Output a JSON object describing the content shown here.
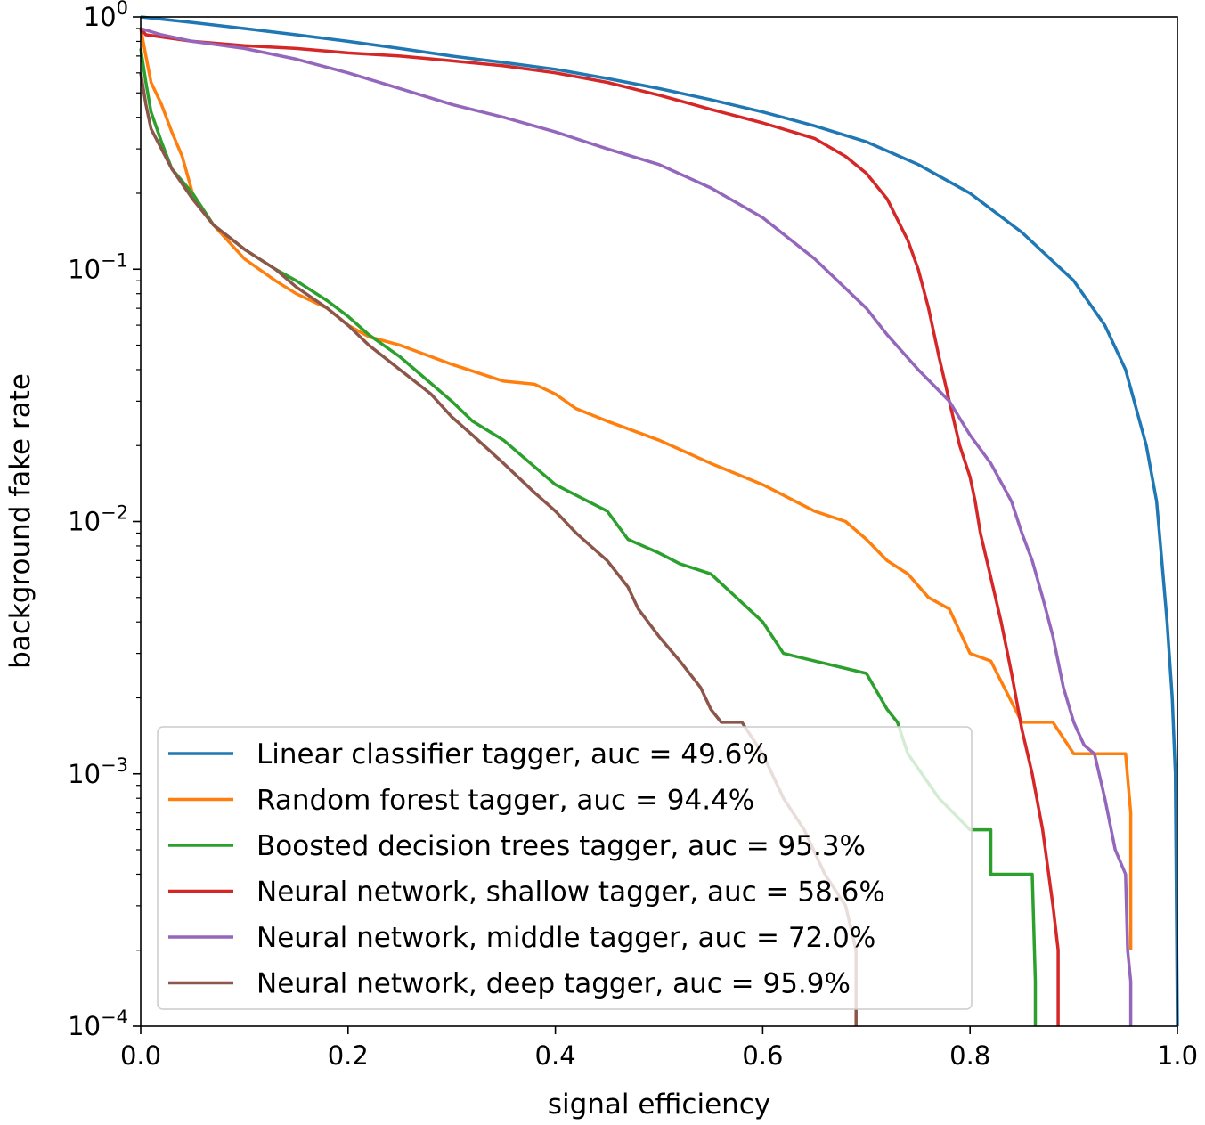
{
  "chart_data": {
    "type": "line",
    "xlabel": "signal efficiency",
    "ylabel": "background fake rate",
    "xlim": [
      0.0,
      1.0
    ],
    "ylim": [
      0.0001,
      1
    ],
    "yscale": "log",
    "grid": false,
    "legend_position": "lower-left",
    "x_ticks": [
      {
        "value": 0.0,
        "label": "0.0"
      },
      {
        "value": 0.2,
        "label": "0.2"
      },
      {
        "value": 0.4,
        "label": "0.4"
      },
      {
        "value": 0.6,
        "label": "0.6"
      },
      {
        "value": 0.8,
        "label": "0.8"
      },
      {
        "value": 1.0,
        "label": "1.0"
      }
    ],
    "y_ticks": [
      {
        "value": 1,
        "base": "10",
        "exp": "0"
      },
      {
        "value": 0.1,
        "base": "10",
        "exp": "−1"
      },
      {
        "value": 0.01,
        "base": "10",
        "exp": "−2"
      },
      {
        "value": 0.001,
        "base": "10",
        "exp": "−3"
      },
      {
        "value": 0.0001,
        "base": "10",
        "exp": "−4"
      }
    ],
    "series": [
      {
        "name": "Linear classifier tagger, auc = 49.6%",
        "color": "#1f77b4",
        "x": [
          0.0,
          0.05,
          0.1,
          0.15,
          0.2,
          0.25,
          0.3,
          0.35,
          0.4,
          0.45,
          0.5,
          0.55,
          0.6,
          0.65,
          0.7,
          0.75,
          0.8,
          0.85,
          0.9,
          0.93,
          0.95,
          0.97,
          0.98,
          0.985,
          0.99,
          0.995,
          0.998,
          1.0
        ],
        "y": [
          1.0,
          0.95,
          0.9,
          0.85,
          0.8,
          0.75,
          0.7,
          0.66,
          0.62,
          0.57,
          0.52,
          0.47,
          0.42,
          0.37,
          0.32,
          0.26,
          0.2,
          0.14,
          0.09,
          0.06,
          0.04,
          0.02,
          0.012,
          0.007,
          0.004,
          0.002,
          0.001,
          0.0001
        ]
      },
      {
        "name": "Random forest tagger, auc = 94.4%",
        "color": "#ff7f0e",
        "x": [
          0.0,
          0.005,
          0.01,
          0.02,
          0.03,
          0.04,
          0.05,
          0.07,
          0.1,
          0.13,
          0.15,
          0.18,
          0.2,
          0.22,
          0.25,
          0.3,
          0.35,
          0.38,
          0.4,
          0.42,
          0.45,
          0.5,
          0.55,
          0.6,
          0.65,
          0.68,
          0.7,
          0.72,
          0.74,
          0.76,
          0.78,
          0.8,
          0.82,
          0.85,
          0.88,
          0.9,
          0.95,
          0.955,
          0.955
        ],
        "y": [
          0.9,
          0.7,
          0.55,
          0.45,
          0.35,
          0.28,
          0.2,
          0.15,
          0.11,
          0.09,
          0.08,
          0.07,
          0.06,
          0.054,
          0.05,
          0.042,
          0.036,
          0.035,
          0.032,
          0.028,
          0.025,
          0.021,
          0.017,
          0.014,
          0.011,
          0.01,
          0.0085,
          0.007,
          0.0062,
          0.005,
          0.0045,
          0.003,
          0.0028,
          0.0016,
          0.0016,
          0.0012,
          0.0012,
          0.0007,
          0.0002
        ]
      },
      {
        "name": "Boosted decision trees tagger, auc = 95.3%",
        "color": "#2ca02c",
        "x": [
          0.0,
          0.005,
          0.01,
          0.02,
          0.03,
          0.05,
          0.07,
          0.1,
          0.13,
          0.15,
          0.18,
          0.2,
          0.22,
          0.25,
          0.3,
          0.32,
          0.35,
          0.4,
          0.45,
          0.47,
          0.5,
          0.52,
          0.55,
          0.57,
          0.6,
          0.62,
          0.65,
          0.7,
          0.72,
          0.73,
          0.74,
          0.77,
          0.8,
          0.82,
          0.82,
          0.86,
          0.863,
          0.863
        ],
        "y": [
          0.75,
          0.55,
          0.42,
          0.32,
          0.25,
          0.2,
          0.15,
          0.12,
          0.1,
          0.09,
          0.075,
          0.065,
          0.055,
          0.045,
          0.03,
          0.025,
          0.021,
          0.014,
          0.011,
          0.0085,
          0.0075,
          0.0068,
          0.0062,
          0.0052,
          0.004,
          0.003,
          0.0028,
          0.0025,
          0.0018,
          0.0016,
          0.0012,
          0.0008,
          0.0006,
          0.0006,
          0.0004,
          0.0004,
          0.00015,
          0.0001
        ]
      },
      {
        "name": "Neural network, shallow tagger, auc = 58.6%",
        "color": "#d62728",
        "x": [
          0.0,
          0.005,
          0.05,
          0.1,
          0.15,
          0.2,
          0.25,
          0.3,
          0.35,
          0.4,
          0.45,
          0.5,
          0.55,
          0.6,
          0.65,
          0.68,
          0.7,
          0.72,
          0.74,
          0.75,
          0.76,
          0.77,
          0.78,
          0.79,
          0.8,
          0.805,
          0.81,
          0.82,
          0.83,
          0.84,
          0.85,
          0.86,
          0.87,
          0.88,
          0.885,
          0.885
        ],
        "y": [
          0.9,
          0.85,
          0.8,
          0.77,
          0.75,
          0.72,
          0.7,
          0.67,
          0.64,
          0.6,
          0.55,
          0.49,
          0.43,
          0.38,
          0.33,
          0.28,
          0.24,
          0.19,
          0.13,
          0.1,
          0.07,
          0.045,
          0.03,
          0.02,
          0.015,
          0.012,
          0.009,
          0.006,
          0.004,
          0.0025,
          0.0015,
          0.001,
          0.0006,
          0.0003,
          0.0002,
          0.0001
        ]
      },
      {
        "name": "Neural network, middle tagger, auc = 72.0%",
        "color": "#9467bd",
        "x": [
          0.0,
          0.02,
          0.05,
          0.1,
          0.15,
          0.2,
          0.25,
          0.3,
          0.35,
          0.4,
          0.45,
          0.5,
          0.55,
          0.6,
          0.65,
          0.7,
          0.72,
          0.75,
          0.78,
          0.8,
          0.82,
          0.84,
          0.85,
          0.86,
          0.87,
          0.88,
          0.89,
          0.9,
          0.91,
          0.92,
          0.93,
          0.94,
          0.95,
          0.952,
          0.955,
          0.955
        ],
        "y": [
          0.9,
          0.85,
          0.8,
          0.75,
          0.68,
          0.6,
          0.52,
          0.45,
          0.4,
          0.35,
          0.3,
          0.26,
          0.21,
          0.16,
          0.11,
          0.07,
          0.055,
          0.04,
          0.03,
          0.022,
          0.017,
          0.012,
          0.009,
          0.007,
          0.005,
          0.0035,
          0.0022,
          0.0016,
          0.0013,
          0.0012,
          0.0008,
          0.0005,
          0.0004,
          0.0002,
          0.00015,
          0.0001
        ]
      },
      {
        "name": "Neural network, deep tagger, auc = 95.9%",
        "color": "#8c564b",
        "x": [
          0.0,
          0.005,
          0.01,
          0.02,
          0.03,
          0.05,
          0.07,
          0.1,
          0.13,
          0.15,
          0.18,
          0.2,
          0.22,
          0.25,
          0.28,
          0.3,
          0.32,
          0.35,
          0.38,
          0.4,
          0.42,
          0.45,
          0.47,
          0.48,
          0.5,
          0.52,
          0.54,
          0.55,
          0.56,
          0.58,
          0.6,
          0.62,
          0.64,
          0.66,
          0.68,
          0.69,
          0.69
        ],
        "y": [
          0.6,
          0.45,
          0.36,
          0.3,
          0.25,
          0.19,
          0.15,
          0.12,
          0.1,
          0.085,
          0.07,
          0.06,
          0.05,
          0.04,
          0.032,
          0.026,
          0.022,
          0.017,
          0.013,
          0.011,
          0.009,
          0.007,
          0.0055,
          0.0045,
          0.0035,
          0.0028,
          0.0022,
          0.0018,
          0.0016,
          0.0016,
          0.0012,
          0.0008,
          0.0006,
          0.0004,
          0.0003,
          0.0002,
          0.0001
        ]
      }
    ]
  }
}
